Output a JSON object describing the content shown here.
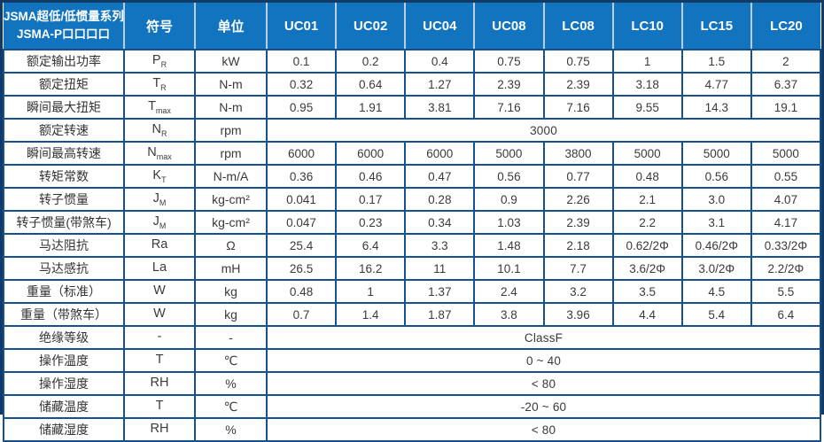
{
  "colors": {
    "header_bg": "#1274BE",
    "header_divider": "#BCCDE0",
    "grid_line": "#15508F",
    "outer_border": "#113A66",
    "body_text": "#3A3A3A",
    "header_text": "#FFFFFF"
  },
  "table": {
    "title_line1": "JSMA超低/低惯量系列",
    "title_line2": "JSMA-P口口口口",
    "col_symbol": "符号",
    "col_unit": "单位",
    "models": [
      "UC01",
      "UC02",
      "UC04",
      "UC08",
      "LC08",
      "LC10",
      "LC15",
      "LC20"
    ],
    "rows": [
      {
        "label": "额定输出功率",
        "sym": "P",
        "sub": "R",
        "unit": "kW",
        "values": [
          "0.1",
          "0.2",
          "0.4",
          "0.75",
          "0.75",
          "1",
          "1.5",
          "2"
        ]
      },
      {
        "label": "额定扭矩",
        "sym": "T",
        "sub": "R",
        "unit": "N-m",
        "values": [
          "0.32",
          "0.64",
          "1.27",
          "2.39",
          "2.39",
          "3.18",
          "4.77",
          "6.37"
        ]
      },
      {
        "label": "瞬间最大扭矩",
        "sym": "T",
        "sub": "max",
        "unit": "N-m",
        "values": [
          "0.95",
          "1.91",
          "3.81",
          "7.16",
          "7.16",
          "9.55",
          "14.3",
          "19.1"
        ]
      },
      {
        "label": "额定转速",
        "sym": "N",
        "sub": "R",
        "unit": "rpm",
        "span": "3000"
      },
      {
        "label": "瞬间最高转速",
        "sym": "N",
        "sub": "max",
        "unit": "rpm",
        "values": [
          "6000",
          "6000",
          "6000",
          "5000",
          "3800",
          "5000",
          "5000",
          "5000"
        ]
      },
      {
        "label": "转矩常数",
        "sym": "K",
        "sub": "T",
        "unit": "N-m/A",
        "values": [
          "0.36",
          "0.46",
          "0.47",
          "0.56",
          "0.77",
          "0.48",
          "0.56",
          "0.55"
        ]
      },
      {
        "label": "转子惯量",
        "sym": "J",
        "sub": "M",
        "unit": "kg-cm²",
        "values": [
          "0.041",
          "0.17",
          "0.28",
          "0.9",
          "2.26",
          "2.1",
          "3.0",
          "4.07"
        ]
      },
      {
        "label": "转子惯量(带煞车)",
        "sym": "J",
        "sub": "M",
        "unit": "kg-cm²",
        "values": [
          "0.047",
          "0.23",
          "0.34",
          "1.03",
          "2.39",
          "2.2",
          "3.1",
          "4.17"
        ]
      },
      {
        "label": "马达阻抗",
        "sym": "Ra",
        "sub": "",
        "unit": "Ω",
        "values": [
          "25.4",
          "6.4",
          "3.3",
          "1.48",
          "2.18",
          "0.62/2Φ",
          "0.46/2Φ",
          "0.33/2Φ"
        ]
      },
      {
        "label": "马达感抗",
        "sym": "La",
        "sub": "",
        "unit": "mH",
        "values": [
          "26.5",
          "16.2",
          "11",
          "10.1",
          "7.7",
          "3.6/2Φ",
          "3.0/2Φ",
          "2.2/2Φ"
        ]
      },
      {
        "label": "重量（标准）",
        "sym": "W",
        "sub": "",
        "unit": "kg",
        "values": [
          "0.48",
          "1",
          "1.37",
          "2.4",
          "3.2",
          "3.5",
          "4.5",
          "5.5"
        ]
      },
      {
        "label": "重量（带煞车）",
        "sym": "W",
        "sub": "",
        "unit": "kg",
        "values": [
          "0.7",
          "1.4",
          "1.87",
          "3.8",
          "3.96",
          "4.4",
          "5.4",
          "6.4"
        ]
      },
      {
        "label": "绝缘等级",
        "sym": "-",
        "sub": "",
        "unit": "-",
        "span": "ClassF"
      },
      {
        "label": "操作温度",
        "sym": "T",
        "sub": "",
        "unit": "℃",
        "span": "0 ~ 40"
      },
      {
        "label": "操作湿度",
        "sym": "RH",
        "sub": "",
        "unit": "%",
        "span": "< 80"
      },
      {
        "label": "储藏温度",
        "sym": "T",
        "sub": "",
        "unit": "℃",
        "span": "-20 ~ 60"
      },
      {
        "label": "储藏湿度",
        "sym": "RH",
        "sub": "",
        "unit": "%",
        "span": "< 80"
      }
    ]
  }
}
